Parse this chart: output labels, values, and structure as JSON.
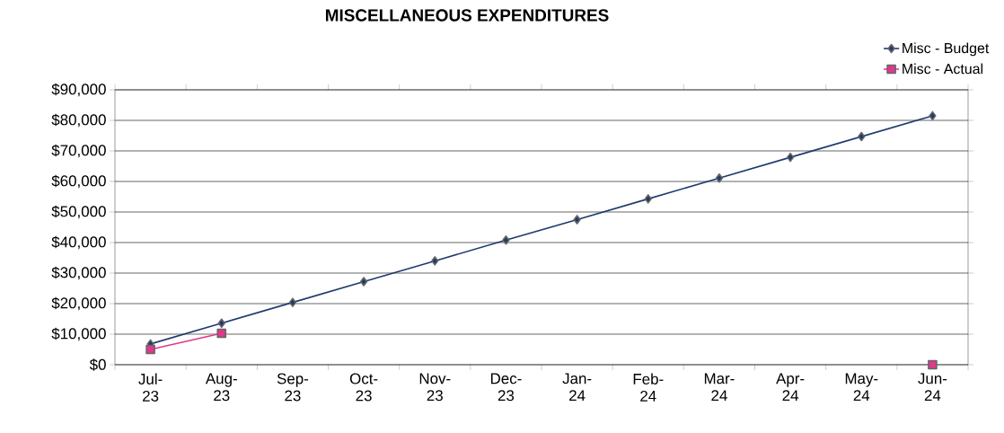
{
  "chart_data": {
    "type": "line",
    "title": "MISCELLANEOUS EXPENDITURES",
    "categories": [
      "Jul-23",
      "Aug-23",
      "Sep-23",
      "Oct-23",
      "Nov-23",
      "Dec-23",
      "Jan-24",
      "Feb-24",
      "Mar-24",
      "Apr-24",
      "May-24",
      "Jun-24"
    ],
    "series": [
      {
        "name": "Misc - Budget",
        "color": "#1f3a6e",
        "marker": "diamond",
        "values": [
          6800,
          13600,
          20400,
          27200,
          34000,
          40800,
          47500,
          54300,
          61100,
          67900,
          74700,
          81500
        ]
      },
      {
        "name": "Misc - Actual",
        "color": "#e0388c",
        "marker": "square",
        "values": [
          5000,
          10300,
          null,
          null,
          null,
          null,
          null,
          null,
          null,
          null,
          null,
          0
        ]
      }
    ],
    "ylim": [
      0,
      90000
    ],
    "yticks": [
      {
        "value": 0,
        "label": "$0"
      },
      {
        "value": 10000,
        "label": "$10,000"
      },
      {
        "value": 20000,
        "label": "$20,000"
      },
      {
        "value": 30000,
        "label": "$30,000"
      },
      {
        "value": 40000,
        "label": "$40,000"
      },
      {
        "value": 50000,
        "label": "$50,000"
      },
      {
        "value": 60000,
        "label": "$60,000"
      },
      {
        "value": 70000,
        "label": "$70,000"
      },
      {
        "value": 80000,
        "label": "$80,000"
      },
      {
        "value": 90000,
        "label": "$90,000"
      }
    ],
    "grid": "y",
    "legend": "top right",
    "line_style": "solid"
  }
}
